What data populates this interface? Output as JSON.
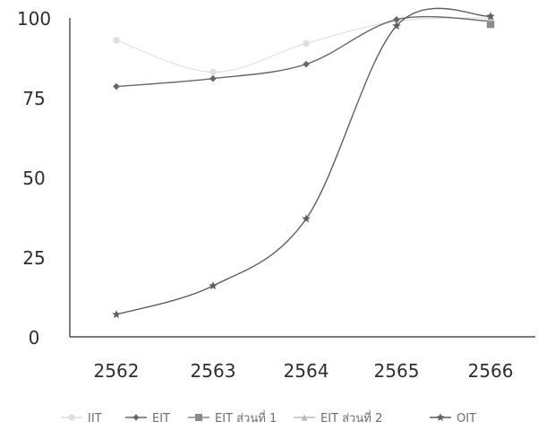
{
  "chart_data": {
    "type": "line",
    "title": "",
    "xlabel": "",
    "ylabel": "",
    "categories": [
      "2562",
      "2563",
      "2564",
      "2565",
      "2566"
    ],
    "ylim": [
      0,
      100
    ],
    "yticks": [
      0,
      25,
      50,
      75,
      100
    ],
    "grid": false,
    "legend_position": "bottom",
    "series": [
      {
        "name": "IIT",
        "values": [
          93,
          83,
          92,
          99,
          100
        ],
        "color": "#e0e0e0",
        "marker": "circle"
      },
      {
        "name": "EIT",
        "values": [
          78.5,
          81,
          85.5,
          99.5,
          99
        ],
        "color": "#666666",
        "marker": "diamond"
      },
      {
        "name": "EIT ส่วนที่ 1",
        "values": [
          null,
          null,
          null,
          null,
          98
        ],
        "color": "#8a8a8a",
        "marker": "square"
      },
      {
        "name": "EIT ส่วนที่ 2",
        "values": [
          null,
          null,
          null,
          null,
          100
        ],
        "color": "#bcbcbc",
        "marker": "triangle"
      },
      {
        "name": "OIT",
        "values": [
          7,
          16,
          37,
          97.5,
          100.5
        ],
        "color": "#5f5f5f",
        "marker": "star"
      }
    ]
  }
}
